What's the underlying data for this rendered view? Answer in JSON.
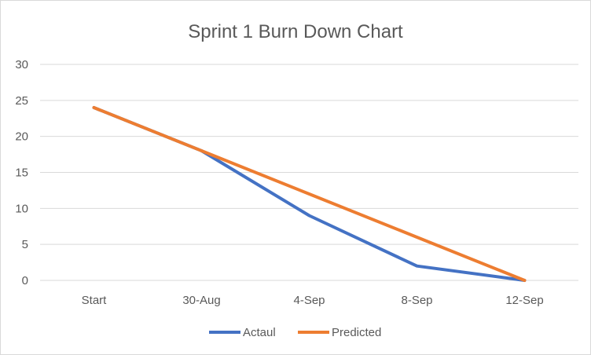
{
  "chart_data": {
    "type": "line",
    "title": "Sprint 1 Burn Down Chart",
    "xlabel": "",
    "ylabel": "",
    "categories": [
      "Start",
      "30-Aug",
      "4-Sep",
      "8-Sep",
      "12-Sep"
    ],
    "ylim": [
      0,
      30
    ],
    "yticks": [
      0,
      5,
      10,
      15,
      20,
      25,
      30
    ],
    "grid": true,
    "legend_position": "bottom",
    "series": [
      {
        "name": "Actaul",
        "color": "#4472C4",
        "values": [
          24,
          18,
          9,
          2,
          0
        ]
      },
      {
        "name": "Predicted",
        "color": "#ED7D31",
        "values": [
          24,
          18,
          12,
          6,
          0
        ]
      }
    ]
  }
}
